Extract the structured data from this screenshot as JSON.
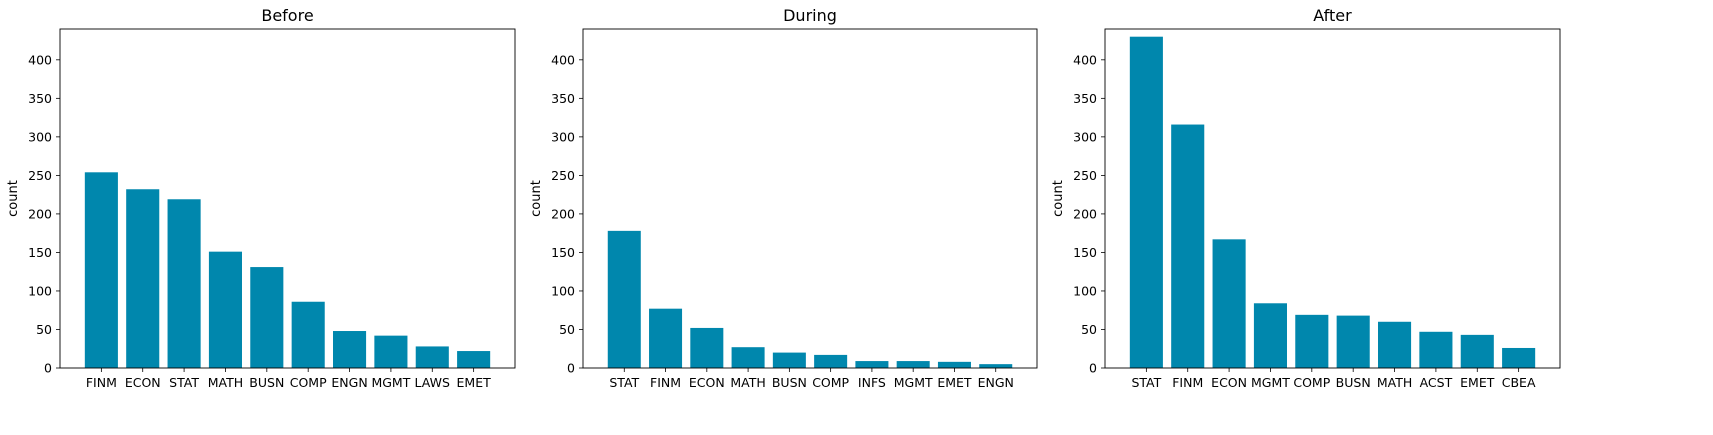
{
  "colors": {
    "bar": "#0087ad",
    "axis": "#000000",
    "background": "#ffffff"
  },
  "chart_data": [
    {
      "type": "bar",
      "title": "Before",
      "xlabel": "",
      "ylabel": "count",
      "ylim": [
        0,
        440
      ],
      "yticks": [
        0,
        50,
        100,
        150,
        200,
        250,
        300,
        350,
        400
      ],
      "grid": false,
      "categories": [
        "FINM",
        "ECON",
        "STAT",
        "MATH",
        "BUSN",
        "COMP",
        "ENGN",
        "MGMT",
        "LAWS",
        "EMET"
      ],
      "values": [
        254,
        232,
        219,
        151,
        131,
        86,
        48,
        42,
        28,
        22
      ]
    },
    {
      "type": "bar",
      "title": "During",
      "xlabel": "",
      "ylabel": "count",
      "ylim": [
        0,
        440
      ],
      "yticks": [
        0,
        50,
        100,
        150,
        200,
        250,
        300,
        350,
        400
      ],
      "grid": false,
      "categories": [
        "STAT",
        "FINM",
        "ECON",
        "MATH",
        "BUSN",
        "COMP",
        "INFS",
        "MGMT",
        "EMET",
        "ENGN"
      ],
      "values": [
        178,
        77,
        52,
        27,
        20,
        17,
        9,
        9,
        8,
        5
      ]
    },
    {
      "type": "bar",
      "title": "After",
      "xlabel": "",
      "ylabel": "count",
      "ylim": [
        0,
        440
      ],
      "yticks": [
        0,
        50,
        100,
        150,
        200,
        250,
        300,
        350,
        400
      ],
      "grid": false,
      "categories": [
        "STAT",
        "FINM",
        "ECON",
        "MGMT",
        "COMP",
        "BUSN",
        "MATH",
        "ACST",
        "EMET",
        "CBEA"
      ],
      "values": [
        430,
        316,
        167,
        84,
        69,
        68,
        60,
        47,
        43,
        26
      ]
    }
  ]
}
